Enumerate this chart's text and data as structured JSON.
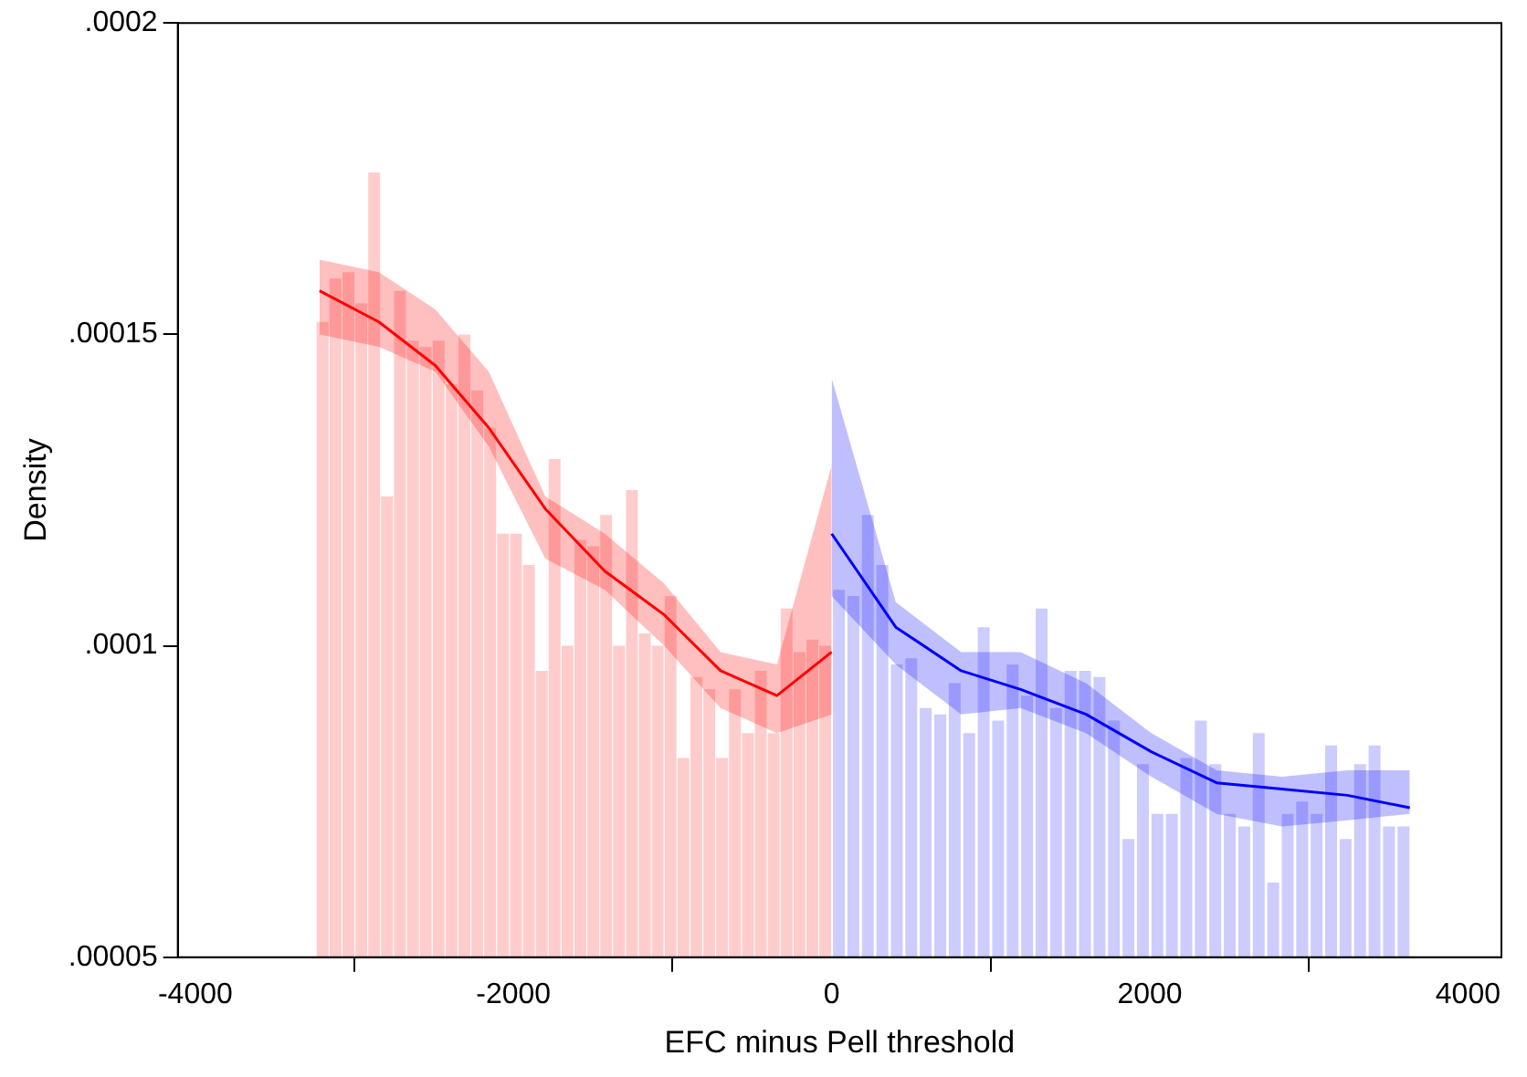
{
  "chart_data": {
    "type": "histogram",
    "xlabel": "EFC minus Pell threshold",
    "ylabel": "Density",
    "xlim": [
      -4110,
      4210
    ],
    "xticks": [
      -4000,
      -2000,
      0,
      2000,
      4000
    ],
    "ylim": [
      5e-05,
      0.0002
    ],
    "yticks": [
      {
        "value": 5e-05,
        "label": ".00005"
      },
      {
        "value": 0.0001,
        "label": ".0001"
      },
      {
        "value": 0.00015,
        "label": ".00015"
      },
      {
        "value": 0.0002,
        "label": ".0002"
      }
    ],
    "grid": false,
    "legend": false,
    "marker": "none",
    "bins": [
      -3240,
      -3159,
      -3078,
      -2997,
      -2916,
      -2835,
      -2754,
      -2673,
      -2592,
      -2511,
      -2430,
      -2349,
      -2268,
      -2187,
      -2106,
      -2025,
      -1944,
      -1863,
      -1782,
      -1701,
      -1620,
      -1539,
      -1458,
      -1377,
      -1296,
      -1215,
      -1134,
      -1053,
      -972,
      -891,
      -810,
      -729,
      -648,
      -567,
      -486,
      -405,
      -324,
      -243,
      -162,
      -81,
      0,
      91,
      182,
      273,
      364,
      455,
      546,
      637,
      728,
      819,
      910,
      1001,
      1092,
      1183,
      1274,
      1365,
      1456,
      1547,
      1638,
      1729,
      1820,
      1911,
      2002,
      2093,
      2184,
      2275,
      2366,
      2457,
      2548,
      2639,
      2730,
      2821,
      2912,
      3003,
      3094,
      3185,
      3276,
      3367,
      3458,
      3549,
      3640
    ],
    "values": [
      0.000152,
      0.000159,
      0.00016,
      0.000155,
      0.000176,
      0.000124,
      0.000157,
      0.000149,
      0.000148,
      0.000149,
      0.000142,
      0.00015,
      0.000141,
      0.000135,
      0.000118,
      0.000118,
      0.000113,
      9.6e-05,
      0.00013,
      0.0001,
      0.000117,
      0.000116,
      0.000121,
      0.0001,
      0.000125,
      0.000102,
      0.0001,
      0.000108,
      8.2e-05,
      9.5e-05,
      9.3e-05,
      8.2e-05,
      9.3e-05,
      8.6e-05,
      9.6e-05,
      8.6e-05,
      0.000106,
      9.9e-05,
      0.000101,
      0.0001,
      0.000109,
      0.000108,
      0.000121,
      0.000113,
      9.7e-05,
      9.8e-05,
      9e-05,
      8.9e-05,
      9.4e-05,
      8.6e-05,
      0.000103,
      8.8e-05,
      9.7e-05,
      9.2e-05,
      0.000106,
      9e-05,
      9.6e-05,
      9.6e-05,
      9.5e-05,
      8.8e-05,
      6.9e-05,
      8.1e-05,
      7.3e-05,
      7.3e-05,
      8.2e-05,
      8.8e-05,
      8.1e-05,
      7.3e-05,
      7.1e-05,
      8.6e-05,
      6.2e-05,
      7.3e-05,
      7.5e-05,
      7.3e-05,
      8.4e-05,
      6.9e-05,
      8.1e-05,
      8.4e-05,
      7.1e-05,
      7.1e-05
    ],
    "colors": [
      "#ffcccc",
      "#ffcccc",
      "#ffcccc",
      "#ffcccc",
      "#ffcccc",
      "#ffcccc",
      "#ffcccc",
      "#ffcccc",
      "#ffcccc",
      "#ffcccc",
      "#ffcccc",
      "#ffcccc",
      "#ffcccc",
      "#ffcccc",
      "#ffcccc",
      "#ffcccc",
      "#ffcccc",
      "#ffcccc",
      "#ffcccc",
      "#ffcccc",
      "#ffcccc",
      "#ffcccc",
      "#ffcccc",
      "#ffcccc",
      "#ffcccc",
      "#ffcccc",
      "#ffcccc",
      "#ffcccc",
      "#ffcccc",
      "#ffcccc",
      "#ffcccc",
      "#ffcccc",
      "#ffcccc",
      "#ffcccc",
      "#ffcccc",
      "#ffcccc",
      "#ffcccc",
      "#ffcccc",
      "#ffcccc",
      "#ffcccc",
      "#ccccff",
      "#ccccff",
      "#ccccff",
      "#ccccff",
      "#ccccff",
      "#ccccff",
      "#ccccff",
      "#ccccff",
      "#ccccff",
      "#ccccff",
      "#ccccff",
      "#ccccff",
      "#ccccff",
      "#ccccff",
      "#ccccff",
      "#ccccff",
      "#ccccff",
      "#ccccff",
      "#ccccff",
      "#ccccff",
      "#ccccff",
      "#ccccff",
      "#ccccff",
      "#ccccff",
      "#ccccff",
      "#ccccff",
      "#ccccff",
      "#ccccff",
      "#ccccff",
      "#ccccff",
      "#ccccff",
      "#ccccff",
      "#ccccff",
      "#ccccff",
      "#ccccff",
      "#ccccff",
      "#ccccff",
      "#ccccff",
      "#ccccff",
      "#ccccff"
    ],
    "series": [
      {
        "type": "line",
        "color": "#ff0000",
        "x": [
          -3219,
          -2846,
          -2491,
          -2155,
          -1800,
          -1426,
          -1053,
          -698,
          -344,
          0
        ],
        "values": [
          0.000157,
          0.000152,
          0.000145,
          0.000135,
          0.000122,
          0.000112,
          0.000105,
          9.6e-05,
          9.2e-05,
          9.9e-05
        ],
        "upper": [
          0.000162,
          0.00016,
          0.000154,
          0.000144,
          0.000124,
          0.000118,
          0.00011,
          9.9e-05,
          9.7e-05,
          0.000129
        ],
        "lower": [
          0.00015,
          0.000148,
          0.000144,
          0.000132,
          0.000114,
          0.000109,
          0.0001,
          9e-05,
          8.6e-05,
          8.9e-05
        ]
      },
      {
        "type": "line",
        "color": "#0000ff",
        "x": [
          0,
          403,
          814,
          1188,
          1599,
          2009,
          2420,
          2831,
          3242,
          3634
        ],
        "values": [
          0.000118,
          0.000103,
          9.6e-05,
          9.3e-05,
          8.9e-05,
          8.3e-05,
          7.8e-05,
          7.7e-05,
          7.6e-05,
          7.4e-05
        ],
        "upper": [
          0.000143,
          0.000107,
          9.9e-05,
          9.9e-05,
          9.4e-05,
          8.6e-05,
          8e-05,
          7.9e-05,
          8e-05,
          8e-05
        ],
        "lower": [
          0.000108,
          9.7e-05,
          8.9e-05,
          9e-05,
          8.6e-05,
          7.9e-05,
          7.3e-05,
          7.1e-05,
          7.2e-05,
          7.3e-05
        ]
      }
    ]
  }
}
